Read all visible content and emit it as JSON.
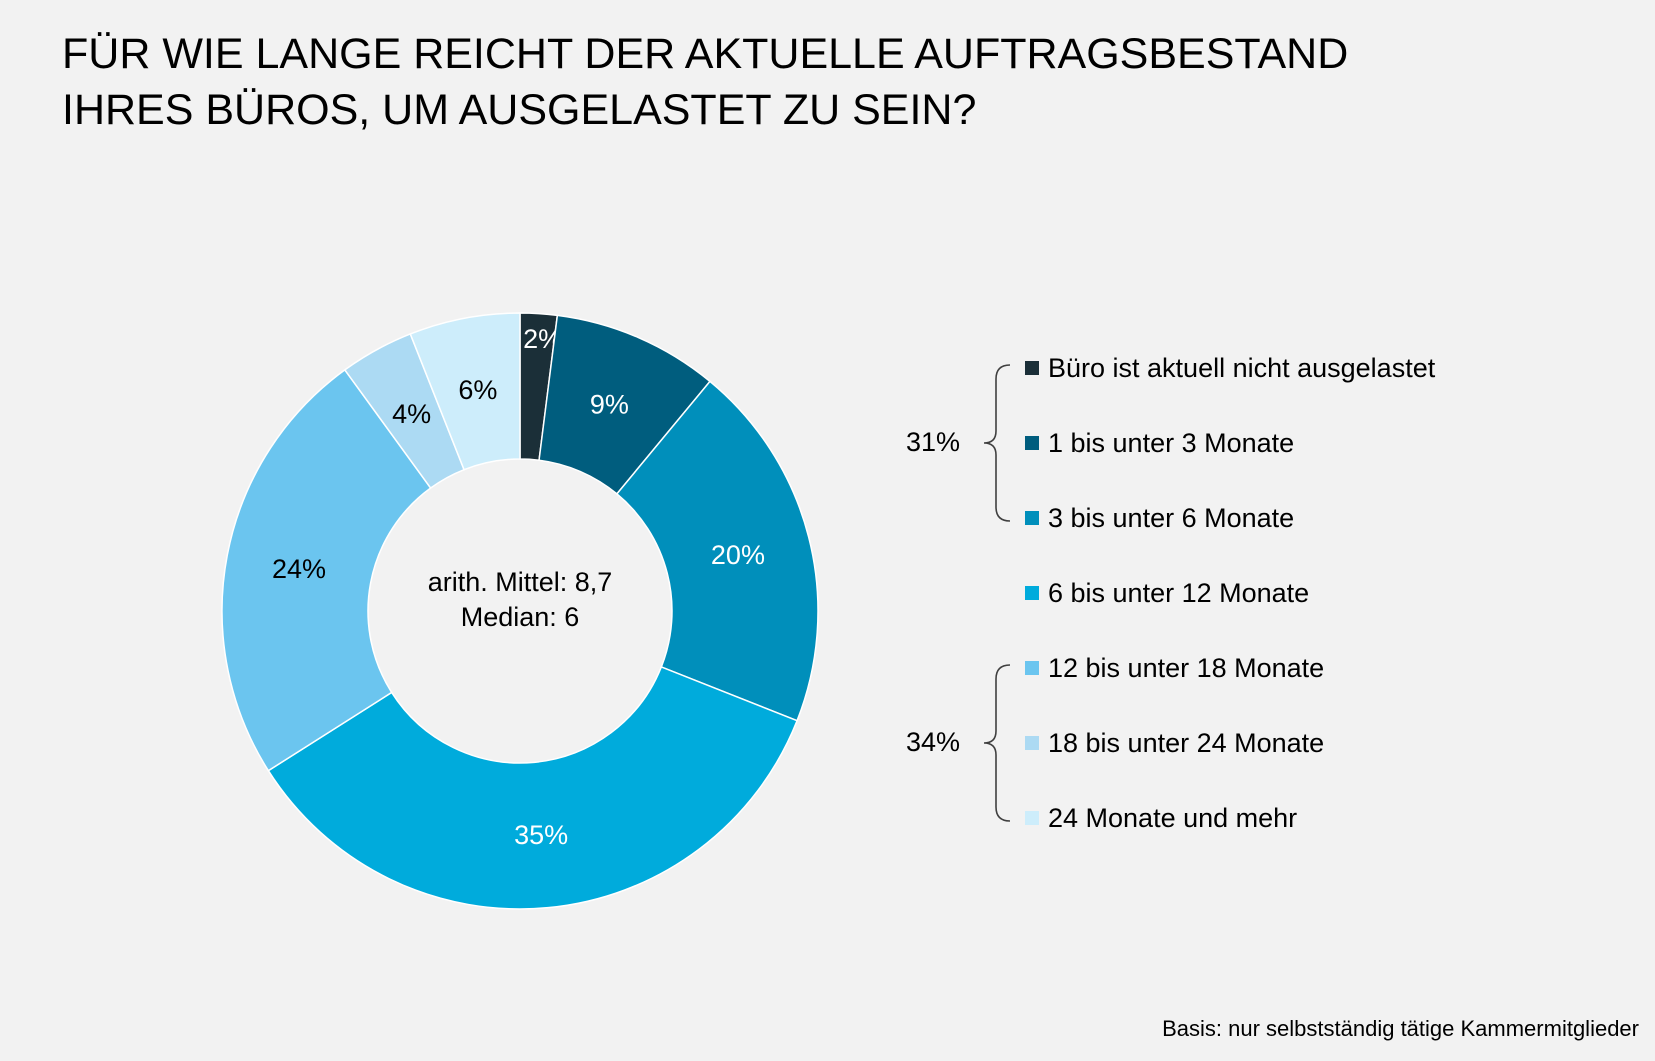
{
  "title": "FÜR WIE LANGE REICHT DER AKTUELLE AUFTRAGSBESTAND\nIHRES BÜROS, UM AUSGELASTET ZU SEIN?",
  "center": {
    "line1": "arith. Mittel: 8,7",
    "line2": "Median: 6"
  },
  "footnote": "Basis: nur selbstständig tätige Kammermitglieder",
  "chart_data": {
    "type": "pie",
    "title": "FÜR WIE LANGE REICHT DER AKTUELLE AUFTRAGSBESTAND IHRES BÜROS, UM AUSGELASTET ZU SEIN?",
    "legend": "right",
    "slices": [
      {
        "label": "Büro ist aktuell nicht ausgelastet",
        "value": 2,
        "data_label": "2%",
        "color": "#1b2f38",
        "label_color": "#ffffff"
      },
      {
        "label": "1 bis unter 3 Monate",
        "value": 9,
        "data_label": "9%",
        "color": "#005d7e",
        "label_color": "#ffffff"
      },
      {
        "label": "3 bis unter 6 Monate",
        "value": 20,
        "data_label": "20%",
        "color": "#008fbb",
        "label_color": "#ffffff"
      },
      {
        "label": "6 bis unter 12 Monate",
        "value": 35,
        "data_label": "35%",
        "color": "#00abdc",
        "label_color": "#ffffff"
      },
      {
        "label": "12 bis unter 18 Monate",
        "value": 24,
        "data_label": "24%",
        "color": "#6bc5ef",
        "label_color": "#000000"
      },
      {
        "label": "18 bis unter 24 Monate",
        "value": 4,
        "data_label": "4%",
        "color": "#acdaf3",
        "label_color": "#000000"
      },
      {
        "label": "24 Monate und mehr",
        "value": 6,
        "data_label": "6%",
        "color": "#cdedfb",
        "label_color": "#000000"
      }
    ],
    "groups": [
      {
        "label": "31%",
        "from": 0,
        "to": 2
      },
      {
        "label": "34%",
        "from": 4,
        "to": 6
      }
    ]
  }
}
